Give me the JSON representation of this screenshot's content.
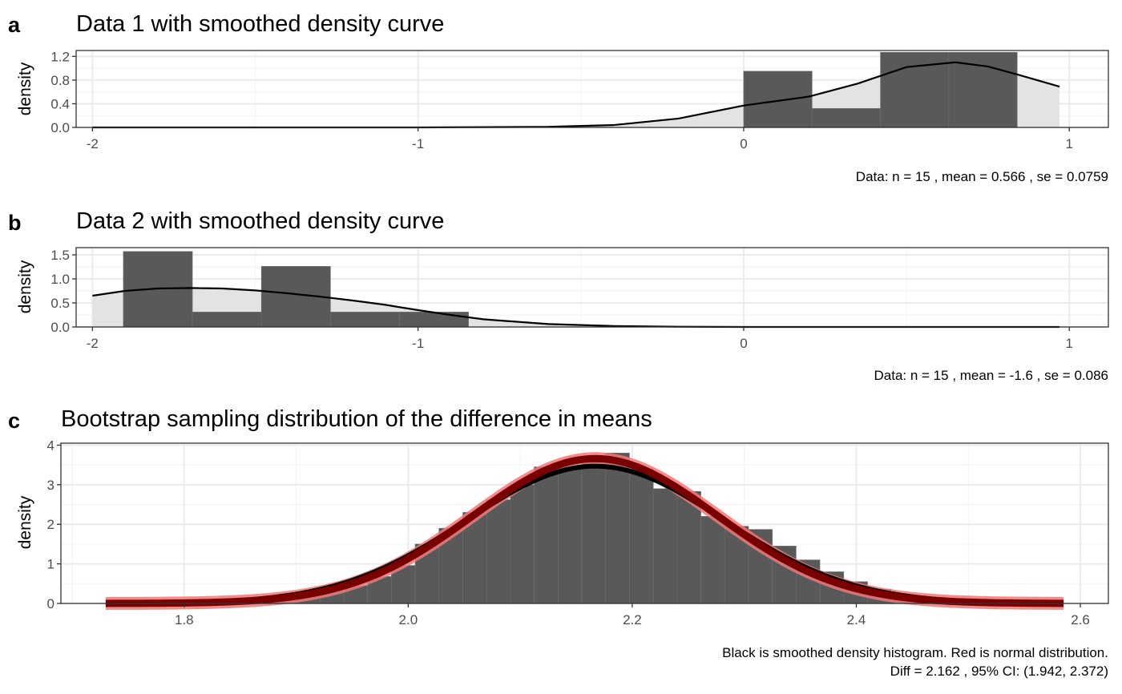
{
  "chart_data": [
    {
      "panel_tag": "a",
      "type": "bar",
      "title": "Data 1 with smoothed density curve",
      "xlabel": "",
      "ylabel": "density",
      "xlim": [
        -2.05,
        1.12
      ],
      "ylim": [
        0,
        1.3
      ],
      "xticks": [
        -2,
        -1,
        0,
        1
      ],
      "xtick_labels": [
        "-2",
        "-1",
        "0",
        "1"
      ],
      "yticks": [
        0,
        0.4,
        0.8,
        1.2
      ],
      "ytick_labels": [
        "0.0",
        "0.4",
        "0.8",
        "1.2"
      ],
      "grid": true,
      "histogram": [
        {
          "x0": 0.0,
          "x1": 0.21,
          "y": 0.95
        },
        {
          "x0": 0.21,
          "x1": 0.42,
          "y": 0.32
        },
        {
          "x0": 0.42,
          "x1": 0.63,
          "y": 1.27
        },
        {
          "x0": 0.63,
          "x1": 0.84,
          "y": 1.27
        }
      ],
      "density_curve": {
        "x": [
          -2.0,
          -1.5,
          -1.0,
          -0.6,
          -0.4,
          -0.2,
          0.0,
          0.2,
          0.35,
          0.5,
          0.65,
          0.75,
          0.85,
          0.97
        ],
        "y": [
          0.0,
          0.0,
          0.0,
          0.01,
          0.04,
          0.15,
          0.37,
          0.52,
          0.74,
          1.02,
          1.1,
          1.03,
          0.88,
          0.69
        ]
      },
      "caption": [
        "Data: n = 15 ,  mean = 0.566 ,  se = 0.0759"
      ]
    },
    {
      "panel_tag": "b",
      "type": "bar",
      "title": "Data 2 with smoothed density curve",
      "xlabel": "",
      "ylabel": "density",
      "xlim": [
        -2.05,
        1.12
      ],
      "ylim": [
        0,
        1.65
      ],
      "xticks": [
        -2,
        -1,
        0,
        1
      ],
      "xtick_labels": [
        "-2",
        "-1",
        "0",
        "1"
      ],
      "yticks": [
        0,
        0.5,
        1.0,
        1.5
      ],
      "ytick_labels": [
        "0.0",
        "0.5",
        "1.0",
        "1.5"
      ],
      "grid": true,
      "histogram": [
        {
          "x0": -1.905,
          "x1": -1.693,
          "y": 1.57
        },
        {
          "x0": -1.693,
          "x1": -1.481,
          "y": 0.31
        },
        {
          "x0": -1.481,
          "x1": -1.269,
          "y": 1.26
        },
        {
          "x0": -1.269,
          "x1": -1.057,
          "y": 0.31
        },
        {
          "x0": -1.057,
          "x1": -0.845,
          "y": 0.31
        }
      ],
      "density_curve": {
        "x": [
          -2.0,
          -1.9,
          -1.8,
          -1.7,
          -1.6,
          -1.5,
          -1.4,
          -1.3,
          -1.2,
          -1.1,
          -1.0,
          -0.9,
          -0.8,
          -0.6,
          -0.4,
          -0.2,
          0.0,
          0.5,
          0.97
        ],
        "y": [
          0.65,
          0.75,
          0.8,
          0.81,
          0.8,
          0.76,
          0.7,
          0.63,
          0.55,
          0.46,
          0.35,
          0.25,
          0.16,
          0.06,
          0.02,
          0.005,
          0.0,
          0.0,
          0.0
        ]
      },
      "caption": [
        "Data: n = 15 ,  mean = -1.6 ,  se = 0.086"
      ]
    },
    {
      "panel_tag": "c",
      "type": "bar",
      "title": "Bootstrap sampling distribution of the difference in means",
      "xlabel": "",
      "ylabel": "density",
      "xlim": [
        1.69,
        2.625
      ],
      "ylim": [
        0,
        4.05
      ],
      "xticks": [
        1.8,
        2.0,
        2.2,
        2.4,
        2.6
      ],
      "xtick_labels": [
        "1.8",
        "2.0",
        "2.2",
        "2.4",
        "2.6"
      ],
      "yticks": [
        0,
        1,
        2,
        3,
        4
      ],
      "ytick_labels": [
        "0",
        "1",
        "2",
        "3",
        "4"
      ],
      "grid": true,
      "histogram_bins": {
        "start": 1.73,
        "width": 0.02125
      },
      "histogram_heights": [
        0.01,
        0.01,
        0.02,
        0.03,
        0.05,
        0.07,
        0.1,
        0.15,
        0.22,
        0.32,
        0.45,
        0.68,
        0.96,
        1.5,
        1.9,
        2.3,
        2.62,
        3.0,
        3.45,
        3.44,
        3.6,
        3.8,
        3.4,
        2.9,
        2.83,
        2.2,
        1.95,
        1.87,
        1.45,
        1.1,
        0.8,
        0.55,
        0.36,
        0.22,
        0.12,
        0.07,
        0.04,
        0.02,
        0.01,
        0.01
      ],
      "density_mean": 2.167,
      "density_sd": 0.115,
      "normal_mean": 2.167,
      "normal_sd": 0.109,
      "curve_range": [
        1.73,
        2.585
      ],
      "series": [
        {
          "name": "smoothed density histogram",
          "color": "#000000"
        },
        {
          "name": "normal distribution",
          "color": "#7a0000",
          "halo_color": "#f07878"
        }
      ],
      "caption": [
        "Black is smoothed density histogram.  Red is normal distribution.",
        "Diff = 2.162 ,  95% CI: (1.942, 2.372)"
      ]
    }
  ]
}
